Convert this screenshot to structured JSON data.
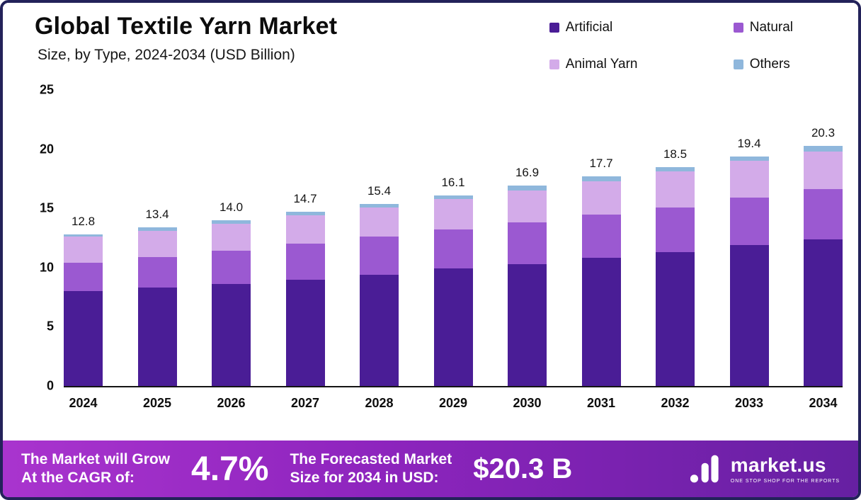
{
  "header": {
    "title": "Global Textile Yarn Market",
    "subtitle": "Size, by Type, 2024-2034 (USD Billion)"
  },
  "chart_data": {
    "type": "bar",
    "stacked": true,
    "title": "Global Textile Yarn Market Size, by Type, 2024-2034 (USD Billion)",
    "categories": [
      "2024",
      "2025",
      "2026",
      "2027",
      "2028",
      "2029",
      "2030",
      "2031",
      "2032",
      "2033",
      "2034"
    ],
    "series": [
      {
        "name": "Artificial",
        "color": "#4a1d96",
        "values": [
          8.0,
          8.3,
          8.6,
          9.0,
          9.4,
          9.9,
          10.3,
          10.8,
          11.3,
          11.9,
          12.4
        ]
      },
      {
        "name": "Natural",
        "color": "#9b59d1",
        "values": [
          2.4,
          2.6,
          2.8,
          3.0,
          3.2,
          3.3,
          3.5,
          3.7,
          3.8,
          4.0,
          4.2
        ]
      },
      {
        "name": "Animal Yarn",
        "color": "#d3abe9",
        "values": [
          2.2,
          2.2,
          2.3,
          2.4,
          2.5,
          2.6,
          2.7,
          2.8,
          3.0,
          3.1,
          3.2
        ]
      },
      {
        "name": "Others",
        "color": "#8fb7dc",
        "values": [
          0.2,
          0.3,
          0.3,
          0.3,
          0.3,
          0.3,
          0.4,
          0.4,
          0.4,
          0.4,
          0.5
        ]
      }
    ],
    "totals": [
      12.8,
      13.4,
      14.0,
      14.7,
      15.4,
      16.1,
      16.9,
      17.7,
      18.5,
      19.4,
      20.3
    ],
    "total_labels": [
      "12.8",
      "13.4",
      "14.0",
      "14.7",
      "15.4",
      "16.1",
      "16.9",
      "17.7",
      "18.5",
      "19.4",
      "20.3"
    ],
    "ylim": [
      0,
      25
    ],
    "yticks": [
      0,
      5,
      10,
      15,
      20,
      25
    ],
    "grid": false,
    "legend_position": "top-right"
  },
  "footer": {
    "cagr_label": "The Market will Grow\nAt the CAGR of:",
    "cagr_value": "4.7%",
    "forecast_label": "The Forecasted Market\nSize for 2034 in USD:",
    "forecast_value": "$20.3 B",
    "logo_text": "market.us",
    "logo_tagline": "ONE STOP SHOP FOR THE REPORTS"
  }
}
